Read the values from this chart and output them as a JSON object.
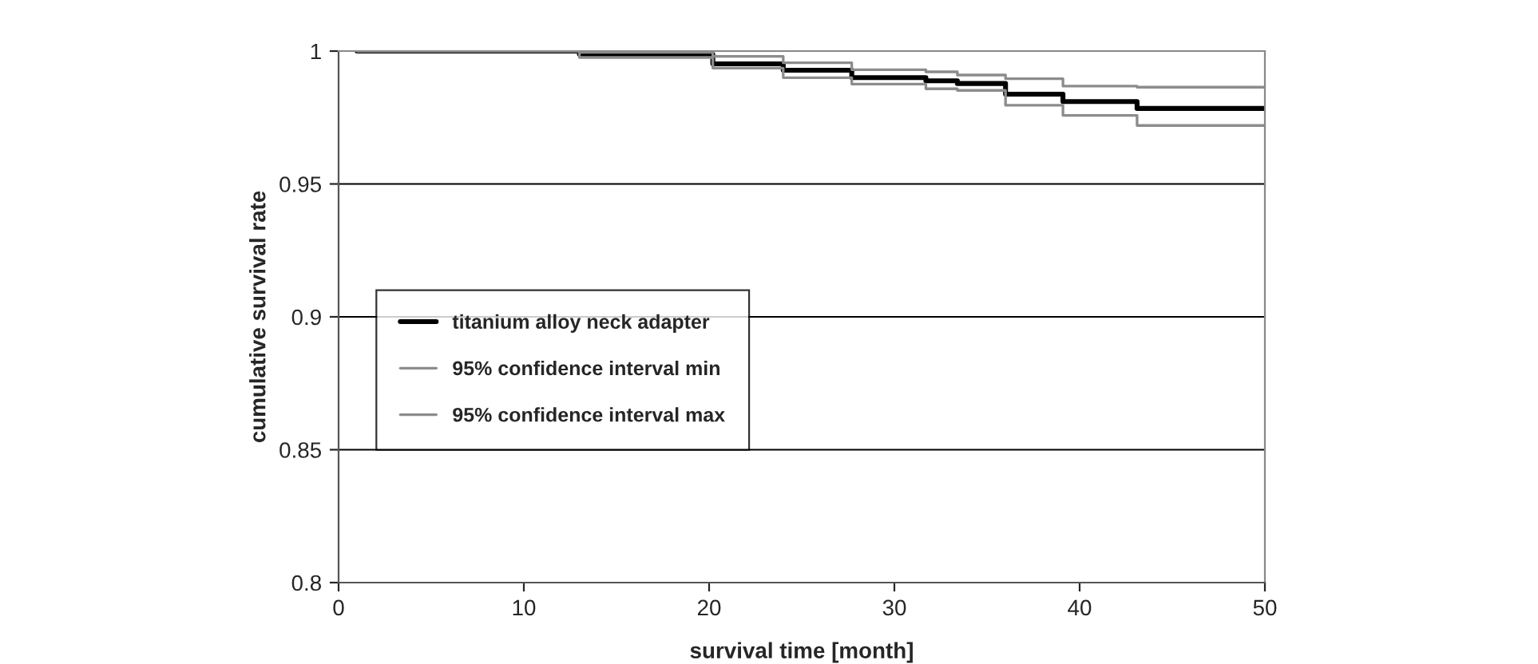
{
  "chart_data": {
    "type": "step",
    "xlabel": "survival time [month]",
    "ylabel": "cumulative survival rate",
    "xlim": [
      0,
      50
    ],
    "xticks": [
      0,
      10,
      20,
      30,
      40,
      50
    ],
    "ylim": [
      0.8,
      1
    ],
    "yticks": [
      0.8,
      0.85,
      0.9,
      0.95,
      1
    ],
    "grid": "y",
    "legend": "left",
    "marker": "none",
    "line_style": "solid",
    "series": [
      {
        "name": "titanium alloy neck adapter",
        "color": "#000000",
        "x": [
          1,
          8.2,
          13,
          20.2,
          24,
          27.7,
          31.7,
          33.4,
          36,
          39.1,
          43.1,
          50
        ],
        "values": [
          1,
          1,
          0.9988,
          0.9952,
          0.9928,
          0.99,
          0.9888,
          0.9878,
          0.9838,
          0.981,
          0.9784,
          0.9784
        ]
      },
      {
        "name": "95% confidence interval min",
        "color": "#8c8c8c",
        "x": [
          1,
          8.2,
          13,
          20.2,
          24,
          27.7,
          31.7,
          33.4,
          36,
          39.1,
          43.1,
          50
        ],
        "values": [
          1,
          1,
          0.9976,
          0.9936,
          0.99,
          0.9876,
          0.9858,
          0.9852,
          0.9796,
          0.9758,
          0.972,
          0.972
        ]
      },
      {
        "name": "95% confidence interval max",
        "color": "#8c8c8c",
        "x": [
          1,
          8.2,
          13,
          20.2,
          24,
          27.7,
          31.7,
          33.4,
          36,
          39.1,
          43.1,
          50
        ],
        "values": [
          1,
          1,
          0.9995,
          0.998,
          0.9956,
          0.993,
          0.9922,
          0.991,
          0.9896,
          0.9868,
          0.9864,
          0.9864
        ]
      }
    ]
  }
}
